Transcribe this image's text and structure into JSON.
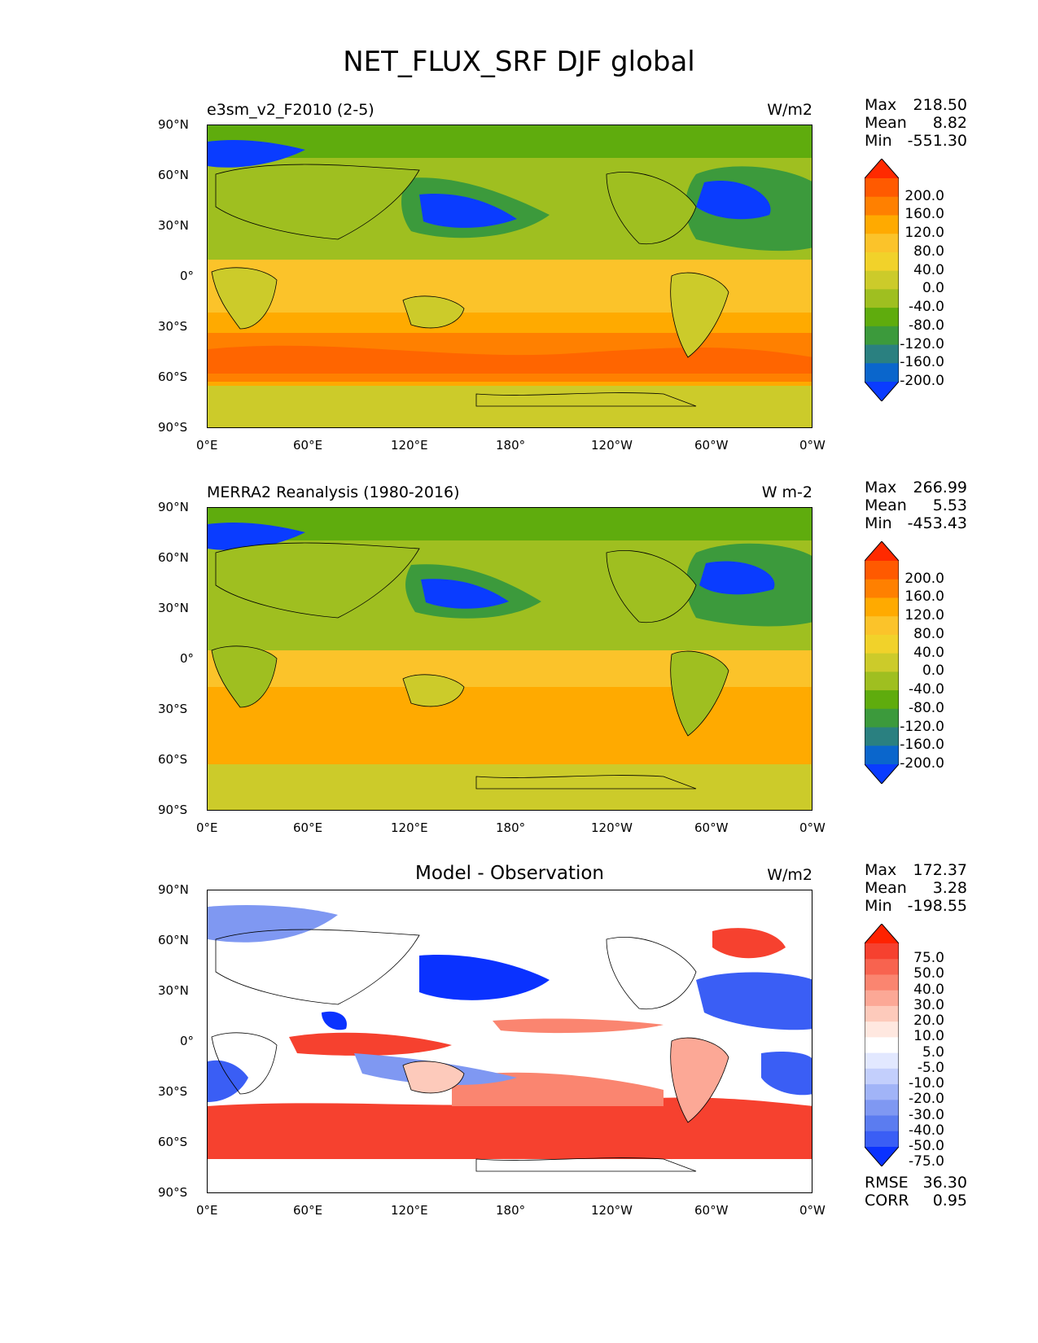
{
  "title": "NET_FLUX_SRF DJF global",
  "lat_ticks": [
    "90°N",
    "60°N",
    "30°N",
    "0°",
    "30°S",
    "60°S",
    "90°S"
  ],
  "lon_ticks": [
    "0°E",
    "60°E",
    "120°E",
    "180°",
    "120°W",
    "60°W",
    "0°W"
  ],
  "panels": [
    {
      "label": "e3sm_v2_F2010 (2-5)",
      "units": "W/m2",
      "stats": {
        "max_label": "Max",
        "max": "218.50",
        "mean_label": "Mean",
        "mean": "8.82",
        "min_label": "Min",
        "min": "-551.30"
      },
      "colorbar_labels": [
        "200.0",
        "160.0",
        "120.0",
        "80.0",
        "40.0",
        "0.0",
        "-40.0",
        "-80.0",
        "-120.0",
        "-160.0",
        "-200.0"
      ],
      "colorbar_colors": [
        "#ff2a00",
        "#ff5a00",
        "#ff8000",
        "#ffaa00",
        "#fbc32a",
        "#f1d22a",
        "#cccb2a",
        "#9fbf20",
        "#5fac0d",
        "#3c9a3c",
        "#2a8080",
        "#0a66cc",
        "#0a3cff"
      ]
    },
    {
      "label": "MERRA2 Reanalysis (1980-2016)",
      "units": "W m-2",
      "stats": {
        "max_label": "Max",
        "max": "266.99",
        "mean_label": "Mean",
        "mean": "5.53",
        "min_label": "Min",
        "min": "-453.43"
      },
      "colorbar_labels": [
        "200.0",
        "160.0",
        "120.0",
        "80.0",
        "40.0",
        "0.0",
        "-40.0",
        "-80.0",
        "-120.0",
        "-160.0",
        "-200.0"
      ],
      "colorbar_colors": [
        "#ff2a00",
        "#ff5a00",
        "#ff8000",
        "#ffaa00",
        "#fbc32a",
        "#f1d22a",
        "#cccb2a",
        "#9fbf20",
        "#5fac0d",
        "#3c9a3c",
        "#2a8080",
        "#0a66cc",
        "#0a3cff"
      ]
    },
    {
      "label": "Model - Observation",
      "units": "W/m2",
      "stats": {
        "max_label": "Max",
        "max": "172.37",
        "mean_label": "Mean",
        "mean": "3.28",
        "min_label": "Min",
        "min": "-198.55"
      },
      "colorbar_labels": [
        "75.0",
        "50.0",
        "40.0",
        "30.0",
        "20.0",
        "10.0",
        "5.0",
        "-5.0",
        "-10.0",
        "-20.0",
        "-30.0",
        "-40.0",
        "-50.0",
        "-75.0"
      ],
      "colorbar_colors": [
        "#ff2200",
        "#f6412f",
        "#f8634f",
        "#fa8570",
        "#fca896",
        "#fdcabb",
        "#ffe8e0",
        "#ffffff",
        "#e2e8ff",
        "#c3cffc",
        "#a1b4f7",
        "#7f98f2",
        "#5b7cf0",
        "#3a5ef5",
        "#0a32ff"
      ],
      "rmse_label": "RMSE",
      "rmse": "36.30",
      "corr_label": "CORR",
      "corr": "0.95"
    }
  ]
}
